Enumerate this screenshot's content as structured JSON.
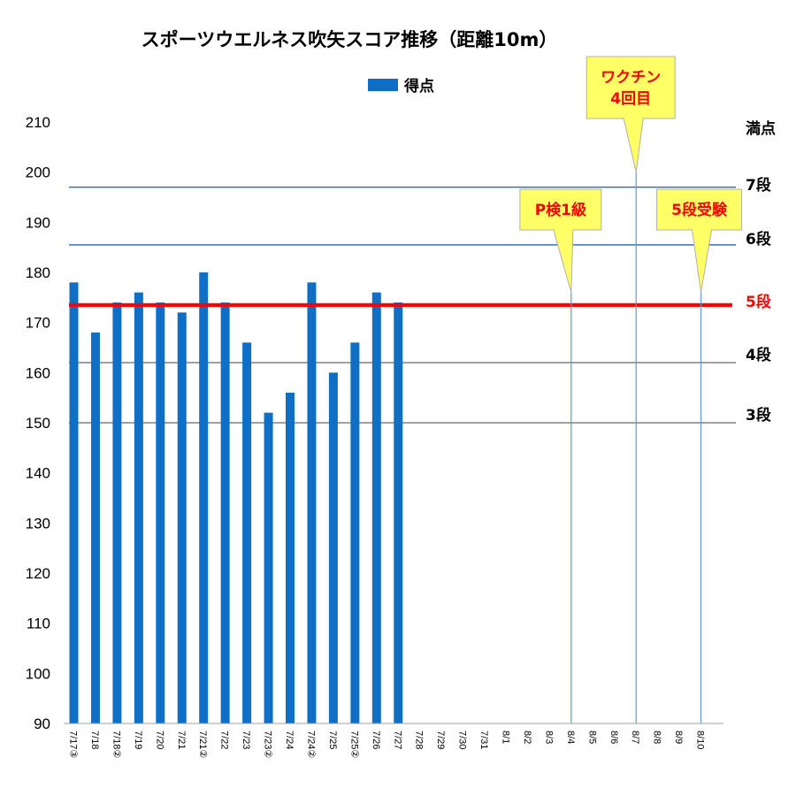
{
  "chart_data": {
    "type": "bar",
    "title": "スポーツウエルネス吹矢スコア推移（距離10m）",
    "legend": {
      "label": "得点",
      "color": "#0f6fc6",
      "placement": "top-center"
    },
    "ylim": [
      90,
      210
    ],
    "yticks": [
      90,
      100,
      110,
      120,
      130,
      140,
      150,
      160,
      170,
      180,
      190,
      200,
      210
    ],
    "grid": false,
    "categories": [
      "7/17③",
      "7/18",
      "7/18②",
      "7/19",
      "7/20",
      "7/21",
      "7/21②",
      "7/22",
      "7/23",
      "7/23②",
      "7/24",
      "7/24②",
      "7/25",
      "7/25②",
      "7/26",
      "7/27",
      "7/28",
      "7/29",
      "7/30",
      "7/31",
      "8/1",
      "8/2",
      "8/3",
      "8/4",
      "8/5",
      "8/6",
      "8/7",
      "8/8",
      "8/9",
      "8/10"
    ],
    "series": [
      {
        "name": "得点",
        "color": "#0f6fc6",
        "values": [
          178,
          168,
          174,
          176,
          174,
          172,
          180,
          174,
          166,
          152,
          156,
          178,
          160,
          166,
          176,
          174,
          null,
          null,
          null,
          null,
          null,
          null,
          null,
          null,
          null,
          null,
          null,
          null,
          null,
          null
        ]
      }
    ],
    "reference_lines": [
      {
        "label": "満点",
        "value": 200,
        "color": "#000000",
        "line_color": ""
      },
      {
        "label": "7段",
        "value": 197,
        "color": "#000000",
        "line_color": "#2e75b6"
      },
      {
        "label": "6段",
        "value": 185.5,
        "color": "#000000",
        "line_color": "#2e75b6"
      },
      {
        "label": "5段",
        "value": 173.5,
        "color": "#ff0000",
        "line_color": "#ff0000"
      },
      {
        "label": "4段",
        "value": 162,
        "color": "#000000",
        "line_color": "#808080"
      },
      {
        "label": "3段",
        "value": 150,
        "color": "#000000",
        "line_color": "#808080"
      }
    ],
    "annotations": [
      {
        "lines": [
          "P検1級"
        ],
        "category": "8/4",
        "target_value": 176,
        "text_color": "#ff0000",
        "fill": "#ffff66"
      },
      {
        "lines": [
          "ワクチン",
          "4回目"
        ],
        "category": "8/7",
        "target_value": 200,
        "text_color": "#ff0000",
        "fill": "#ffff66"
      },
      {
        "lines": [
          "5段受験"
        ],
        "category": "8/10",
        "target_value": 176,
        "text_color": "#ff0000",
        "fill": "#ffff66"
      }
    ]
  }
}
